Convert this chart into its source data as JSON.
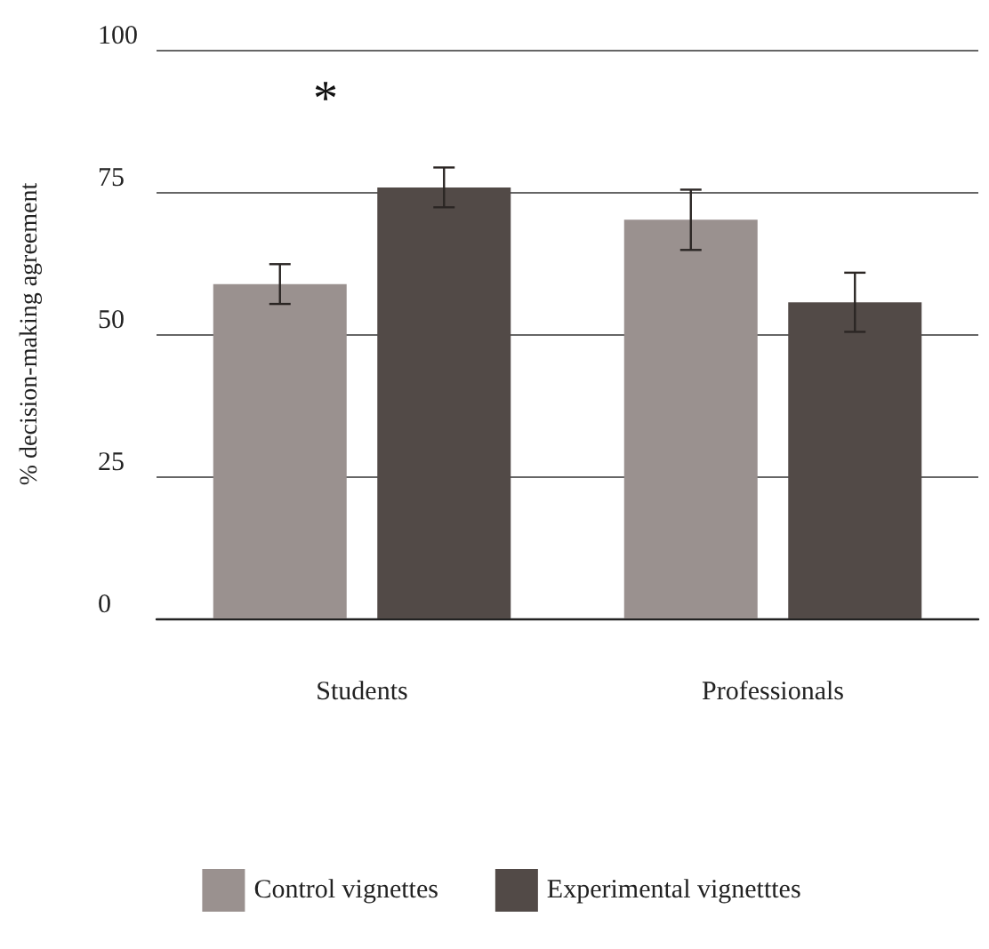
{
  "chart_data": {
    "type": "bar",
    "ylabel": "% decision-making agreement",
    "categories": [
      "Students",
      "Professionals"
    ],
    "series": [
      {
        "name": "Control vignettes",
        "color": "#9a918f",
        "values": [
          58.8,
          70.1
        ],
        "errors": [
          3.5,
          5.3
        ]
      },
      {
        "name": "Experimental vignetttes",
        "color": "#524a47",
        "values": [
          75.8,
          55.6
        ],
        "errors": [
          3.5,
          5.2
        ]
      }
    ],
    "ylim": [
      0,
      100
    ],
    "yticks": [
      0,
      25,
      50,
      75,
      100
    ],
    "grid": "y",
    "legend": "bottom",
    "annotations": [
      "*"
    ]
  }
}
